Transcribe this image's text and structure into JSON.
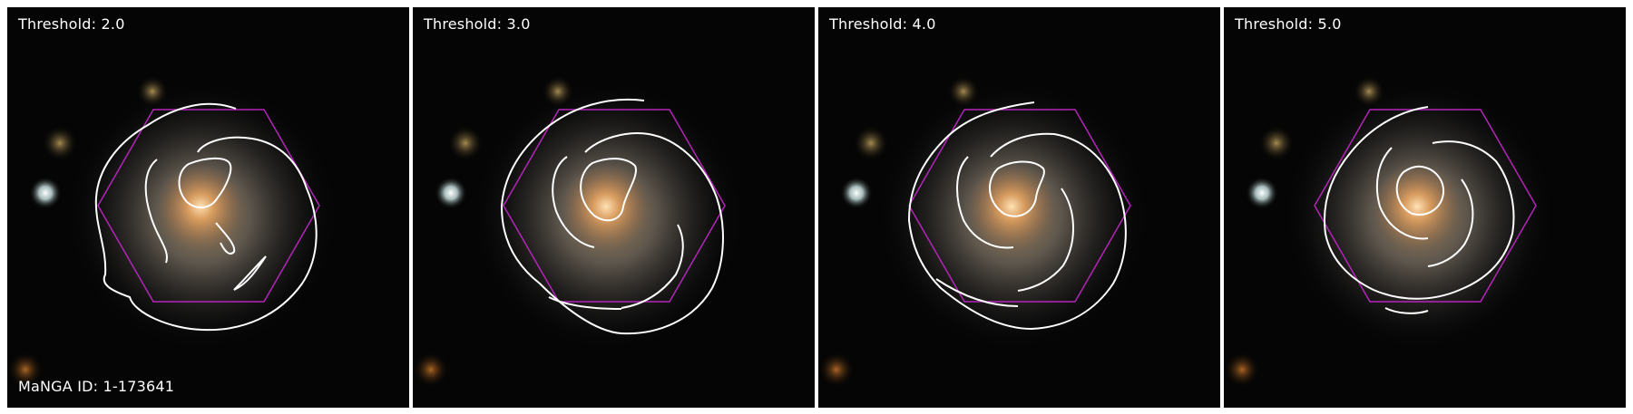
{
  "figure": {
    "manga_id_label": "MaNGA ID: 1-173641",
    "panels": [
      {
        "threshold_label": "Threshold: 2.0",
        "threshold": 2.0
      },
      {
        "threshold_label": "Threshold: 3.0",
        "threshold": 3.0
      },
      {
        "threshold_label": "Threshold: 4.0",
        "threshold": 4.0
      },
      {
        "threshold_label": "Threshold: 5.0",
        "threshold": 5.0
      }
    ],
    "colors": {
      "background": "#050505",
      "contour": "#ffffff",
      "hexagon": "#b325b8",
      "galaxy_core": "#f4b46a",
      "galaxy_disk": "#8a8075",
      "label": "#ffffff"
    },
    "icons": [
      "spiral-galaxy-image",
      "hexagon-ifu-footprint",
      "contour-outline"
    ]
  }
}
